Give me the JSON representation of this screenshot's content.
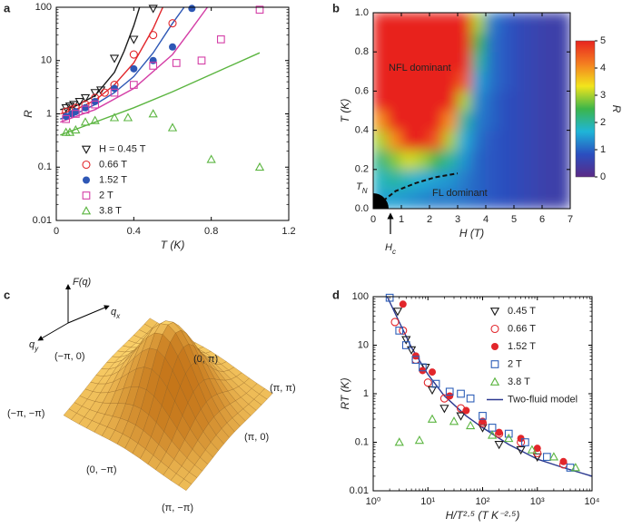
{
  "chart_data": [
    {
      "panel": "a",
      "type": "scatter",
      "xlabel": "T (K)",
      "ylabel": "R",
      "xlim": [
        0,
        1.2
      ],
      "ylim": [
        0.01,
        100
      ],
      "yscale": "log",
      "xticks": [
        0,
        0.4,
        0.8,
        1.2
      ],
      "yticks": [
        0.01,
        0.1,
        1,
        10,
        100
      ],
      "legend": "lower left",
      "series": [
        {
          "name": "H = 0.45 T",
          "color": "#1a1a1a",
          "marker": "triangle-down",
          "x": [
            0.05,
            0.07,
            0.09,
            0.12,
            0.15,
            0.2,
            0.23,
            0.3,
            0.4,
            0.5
          ],
          "values": [
            1.3,
            1.4,
            1.5,
            1.7,
            2,
            2.5,
            2.8,
            11,
            25,
            95
          ]
        },
        {
          "name": "0.66 T",
          "color": "#e2262b",
          "marker": "circle-open",
          "x": [
            0.05,
            0.08,
            0.1,
            0.15,
            0.2,
            0.25,
            0.3,
            0.4,
            0.5,
            0.6
          ],
          "values": [
            1.1,
            1.2,
            1.3,
            1.5,
            2,
            2.5,
            3.5,
            13,
            30,
            50
          ]
        },
        {
          "name": "1.52 T",
          "color": "#2e57b5",
          "marker": "circle",
          "x": [
            0.05,
            0.08,
            0.1,
            0.15,
            0.2,
            0.3,
            0.4,
            0.5,
            0.6,
            0.7
          ],
          "values": [
            0.9,
            1,
            1.1,
            1.3,
            1.7,
            3,
            7,
            10,
            18,
            95
          ]
        },
        {
          "name": "2 T",
          "color": "#d43ea6",
          "marker": "square-open",
          "x": [
            0.05,
            0.1,
            0.15,
            0.2,
            0.3,
            0.4,
            0.5,
            0.62,
            0.75,
            0.85,
            1.05
          ],
          "values": [
            0.8,
            1,
            1.2,
            1.5,
            2.5,
            3.5,
            8,
            9,
            10,
            25,
            90
          ]
        },
        {
          "name": "3.8 T",
          "color": "#5bb540",
          "marker": "triangle-up",
          "x": [
            0.05,
            0.07,
            0.1,
            0.15,
            0.2,
            0.3,
            0.37,
            0.5,
            0.6,
            0.8,
            1.05
          ],
          "values": [
            0.45,
            0.45,
            0.5,
            0.7,
            0.75,
            0.85,
            0.85,
            1,
            0.55,
            0.14,
            0.1
          ]
        }
      ],
      "fits": [
        {
          "color": "#1a1a1a",
          "x": [
            0.02,
            0.1,
            0.2,
            0.3,
            0.35,
            0.4,
            0.43
          ],
          "values": [
            1.2,
            1.4,
            2.2,
            6,
            15,
            45,
            100
          ]
        },
        {
          "color": "#e2262b",
          "x": [
            0.02,
            0.1,
            0.2,
            0.3,
            0.4,
            0.5,
            0.55
          ],
          "values": [
            1.0,
            1.2,
            1.8,
            3.5,
            9,
            40,
            100
          ]
        },
        {
          "color": "#2e57b5",
          "x": [
            0.02,
            0.1,
            0.2,
            0.3,
            0.4,
            0.5,
            0.6,
            0.66
          ],
          "values": [
            0.8,
            1.0,
            1.5,
            2.5,
            5,
            14,
            50,
            100
          ]
        },
        {
          "color": "#d43ea6",
          "x": [
            0.02,
            0.2,
            0.4,
            0.6,
            0.7,
            0.78
          ],
          "values": [
            0.7,
            1.2,
            3,
            13,
            40,
            100
          ]
        },
        {
          "color": "#5bb540",
          "x": [
            0.02,
            0.2,
            0.4,
            0.6,
            0.8,
            1.05
          ],
          "values": [
            0.4,
            0.7,
            1.3,
            2.6,
            5.5,
            14
          ]
        }
      ]
    },
    {
      "panel": "b",
      "type": "heatmap",
      "xlabel": "H (T)",
      "ylabel": "T (K)",
      "xlim": [
        0,
        7
      ],
      "ylim": [
        0,
        1
      ],
      "xticks": [
        0,
        1,
        2,
        3,
        4,
        5,
        6,
        7
      ],
      "yticks": [
        {
          "value": 0,
          "label": "0.0"
        },
        0.2,
        0.4,
        0.6,
        0.8,
        {
          "value": 1,
          "label": "1.0"
        }
      ],
      "x": [
        0.25,
        0.75,
        1.25,
        1.75,
        2.25,
        2.75,
        3.25,
        3.75,
        4.25,
        4.75,
        5.25,
        5.75,
        6.25,
        6.75
      ],
      "y": [
        0.05,
        0.15,
        0.25,
        0.35,
        0.45,
        0.55,
        0.65,
        0.75,
        0.85,
        0.95
      ],
      "z": [
        [
          1.5,
          1.5,
          1.4,
          1.3,
          1.2,
          1.2,
          1.1,
          1.0,
          0.9,
          0.8,
          0.7,
          0.6,
          0.5,
          0.5
        ],
        [
          1.8,
          2,
          1.8,
          1.6,
          1.5,
          1.4,
          1.2,
          1.0,
          0.9,
          0.8,
          0.7,
          0.6,
          0.5,
          0.5
        ],
        [
          2.2,
          2.8,
          3.2,
          3,
          2.5,
          2,
          1.4,
          1.0,
          0.9,
          0.8,
          0.7,
          0.6,
          0.5,
          0.5
        ],
        [
          3,
          4,
          5,
          5,
          4.5,
          3,
          1.6,
          1.1,
          0.9,
          0.8,
          0.7,
          0.6,
          0.5,
          0.5
        ],
        [
          4,
          5,
          5,
          5,
          5,
          4,
          2,
          1.2,
          1.0,
          0.8,
          0.7,
          0.6,
          0.5,
          0.5
        ],
        [
          5,
          5,
          5,
          5,
          5,
          5,
          3,
          1.3,
          1.0,
          0.8,
          0.7,
          0.6,
          0.5,
          0.5
        ],
        [
          5,
          5,
          5,
          5,
          5,
          5,
          4.5,
          1.5,
          1.1,
          0.9,
          0.7,
          0.6,
          0.5,
          0.5
        ],
        [
          5,
          5,
          5,
          5,
          5,
          5,
          5,
          2,
          1.1,
          0.9,
          0.7,
          0.6,
          0.5,
          0.5
        ],
        [
          5,
          5,
          5,
          5,
          5,
          5,
          5,
          2.5,
          1.1,
          0.9,
          0.7,
          0.6,
          0.5,
          0.5
        ],
        [
          5,
          5,
          5,
          5,
          5,
          5,
          5,
          3,
          1.2,
          0.9,
          0.7,
          0.6,
          0.5,
          0.5
        ]
      ],
      "colormap": [
        "#5b2a86",
        "#2a4fc0",
        "#1fb5d8",
        "#3cb54a",
        "#f2e51c",
        "#f47d20",
        "#e8241f"
      ],
      "clim": [
        0,
        5
      ],
      "cticks": [
        0,
        1,
        2,
        3,
        4,
        5
      ],
      "clabel": "R",
      "crossover": {
        "x": [
          0.35,
          0.8,
          1.5,
          2.2,
          3.0
        ],
        "y": [
          0.04,
          0.09,
          0.13,
          0.16,
          0.18
        ]
      },
      "labels": {
        "nfl": "NFL dominant",
        "fl": "FL dominant",
        "tn": "TN",
        "hc": "Hc"
      }
    },
    {
      "panel": "c",
      "type": "surface",
      "axis_labels": {
        "z": "F(q)",
        "x": "qx",
        "y": "qy"
      },
      "point_labels": [
        "(0, π)",
        "(π, π)",
        "(π, 0)",
        "(π, −π)",
        "(0, −π)",
        "(−π, −π)",
        "(−π, 0)"
      ]
    },
    {
      "panel": "d",
      "type": "scatter",
      "xlabel": "H/T²·⁵ (T K⁻²·⁵)",
      "ylabel": "RT (K)",
      "xlim": [
        1,
        10000
      ],
      "ylim": [
        0.01,
        100
      ],
      "xscale": "log",
      "yscale": "log",
      "xticks": [
        {
          "value": 1,
          "label": "10⁰"
        },
        {
          "value": 10,
          "label": "10¹"
        },
        {
          "value": 100,
          "label": "10²"
        },
        {
          "value": 1000,
          "label": "10³"
        },
        {
          "value": 10000,
          "label": "10⁴"
        }
      ],
      "yticks": [
        0.01,
        0.1,
        1,
        10,
        100
      ],
      "legend": "upper right",
      "series": [
        {
          "name": "0.45 T",
          "color": "#1a1a1a",
          "marker": "triangle-down",
          "x": [
            2.8,
            4,
            5,
            9,
            12,
            20,
            40,
            100,
            200,
            500,
            1000
          ],
          "values": [
            50,
            13,
            8,
            3.5,
            1.2,
            0.5,
            0.35,
            0.2,
            0.09,
            0.07,
            0.05
          ]
        },
        {
          "name": "0.66 T",
          "color": "#e2262b",
          "marker": "circle-open",
          "x": [
            2.5,
            3.5,
            6,
            10,
            20,
            40,
            100,
            200,
            500,
            1000,
            3000
          ],
          "values": [
            30,
            20,
            5,
            1.7,
            0.8,
            0.5,
            0.25,
            0.15,
            0.1,
            0.06,
            0.035
          ]
        },
        {
          "name": "1.52 T",
          "color": "#e2262b",
          "marker": "circle",
          "x": [
            3.5,
            6,
            8,
            12,
            25,
            50,
            100,
            200,
            500,
            1000,
            3000
          ],
          "values": [
            70,
            6,
            3,
            2.8,
            0.9,
            0.45,
            0.27,
            0.16,
            0.12,
            0.075,
            0.04
          ]
        },
        {
          "name": "2 T",
          "color": "#2e5fb8",
          "marker": "square-open",
          "x": [
            2,
            3,
            4,
            6,
            8,
            14,
            25,
            40,
            60,
            100,
            150,
            300,
            600,
            1500,
            4000
          ],
          "values": [
            95,
            20,
            10,
            5,
            3.5,
            1.6,
            1.1,
            1,
            0.8,
            0.35,
            0.2,
            0.15,
            0.1,
            0.05,
            0.03
          ]
        },
        {
          "name": "3.8 T",
          "color": "#5bb540",
          "marker": "triangle-up",
          "x": [
            3,
            7,
            12,
            30,
            60,
            150,
            300,
            800,
            2000,
            5000
          ],
          "values": [
            0.1,
            0.11,
            0.3,
            0.27,
            0.22,
            0.14,
            0.12,
            0.07,
            0.05,
            0.03
          ]
        }
      ],
      "model": {
        "name": "Two-fluid model",
        "color": "#2b3990",
        "x": [
          1.8,
          3,
          5,
          10,
          20,
          50,
          100,
          300,
          1000,
          3000,
          10000
        ],
        "values": [
          100,
          30,
          9,
          2.5,
          0.9,
          0.35,
          0.2,
          0.09,
          0.045,
          0.03,
          0.02
        ]
      }
    }
  ]
}
